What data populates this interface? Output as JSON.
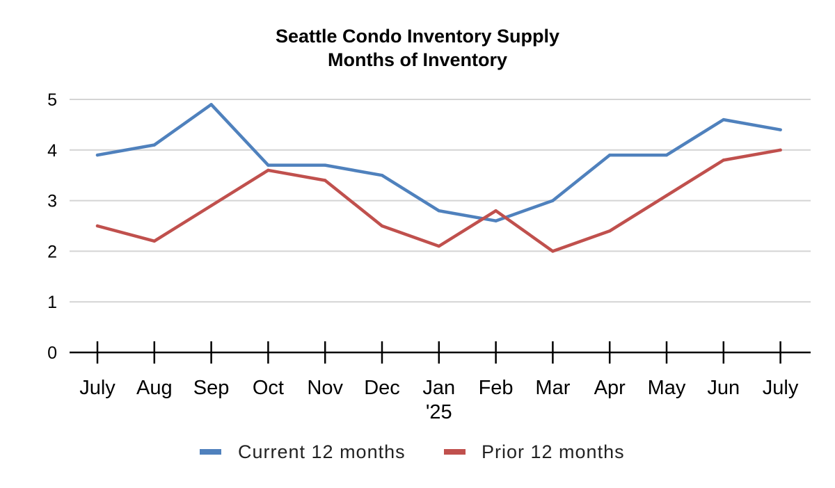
{
  "chart_data": {
    "type": "line",
    "title": "Seattle Condo Inventory Supply",
    "subtitle": "Months of Inventory",
    "categories": [
      "July",
      "Aug",
      "Sep",
      "Oct",
      "Nov",
      "Dec",
      "Jan\n'25",
      "Feb",
      "Mar",
      "Apr",
      "May",
      "Jun",
      "July"
    ],
    "series": [
      {
        "name": "Current 12 months",
        "color": "#4f81bd",
        "values": [
          3.9,
          4.1,
          4.9,
          3.7,
          3.7,
          3.5,
          2.8,
          2.6,
          3.0,
          3.9,
          3.9,
          4.6,
          4.4
        ]
      },
      {
        "name": "Prior 12 months",
        "color": "#c0504d",
        "values": [
          2.5,
          2.2,
          2.9,
          3.6,
          3.4,
          2.5,
          2.1,
          2.8,
          2.0,
          2.4,
          3.1,
          3.8,
          4.0
        ]
      }
    ],
    "ylim": [
      0,
      5
    ],
    "yticks": [
      0,
      1,
      2,
      3,
      4,
      5
    ],
    "grid": true,
    "legend_position": "bottom"
  }
}
